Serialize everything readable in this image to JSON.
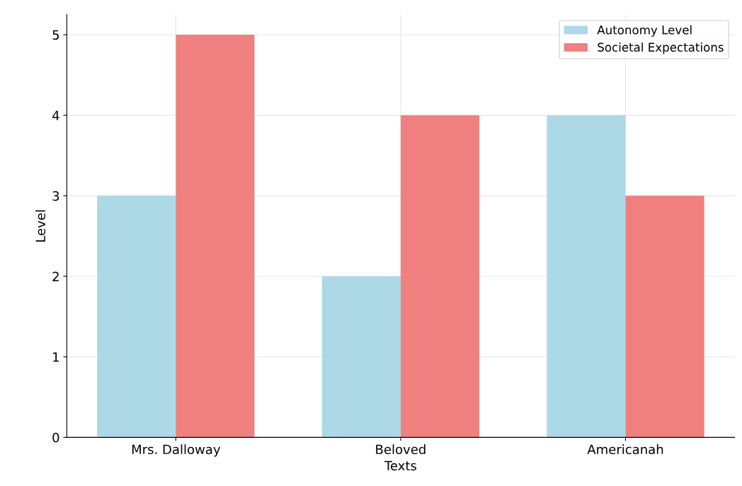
{
  "chart_data": {
    "type": "bar",
    "xlabel": "Texts",
    "ylabel": "Level",
    "categories": [
      "Mrs. Dalloway",
      "Beloved",
      "Americanah"
    ],
    "series": [
      {
        "name": "Autonomy Level",
        "color": "#add8e6",
        "values": [
          3,
          2,
          4
        ]
      },
      {
        "name": "Societal Expectations",
        "color": "#f08080",
        "values": [
          5,
          4,
          3
        ]
      }
    ],
    "ylim": [
      0,
      5.25
    ],
    "yticks": [
      0,
      1,
      2,
      3,
      4,
      5
    ],
    "grid": true,
    "legend": "top right"
  }
}
